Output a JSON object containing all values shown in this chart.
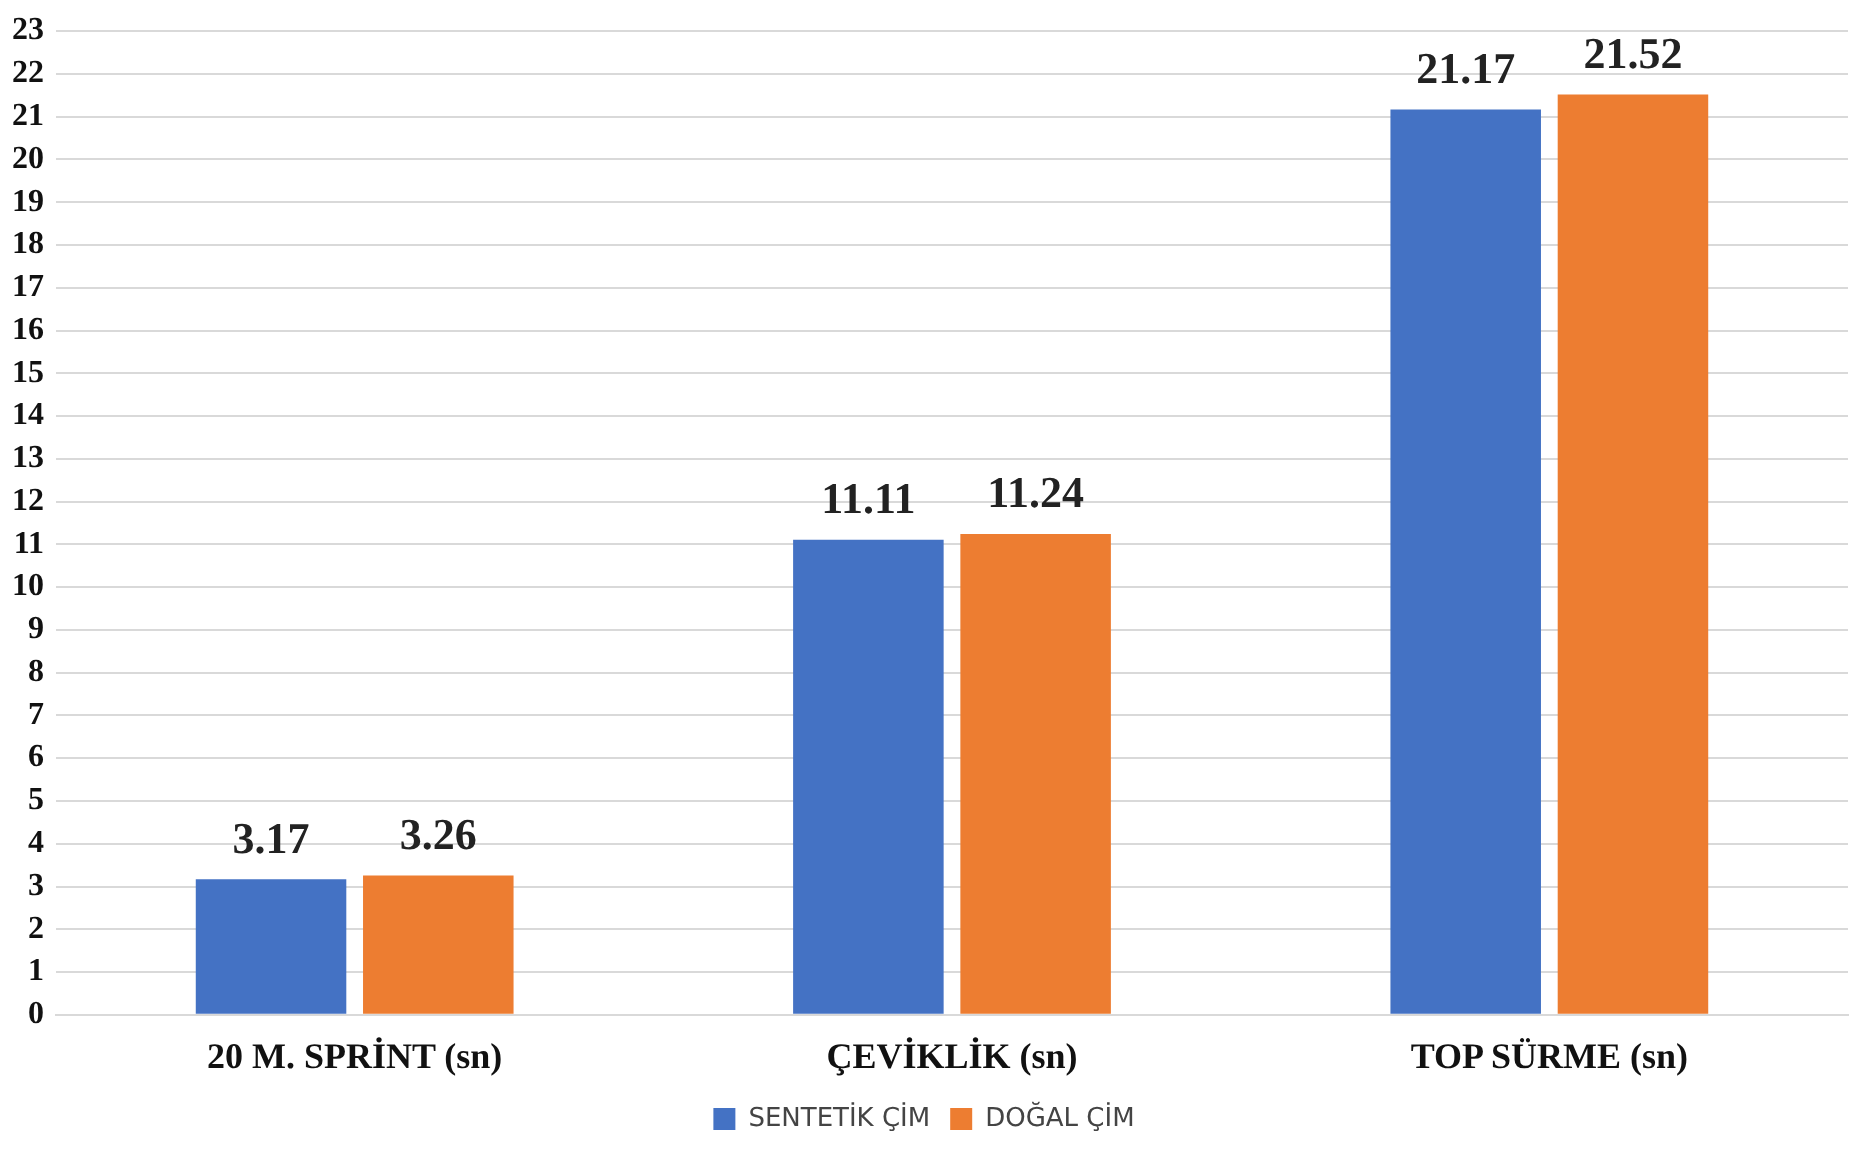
{
  "chart_data": {
    "type": "bar",
    "categories": [
      "20 M. SPRİNT (sn)",
      "ÇEVİKLİK (sn)",
      "TOP SÜRME (sn)"
    ],
    "series": [
      {
        "name": "SENTETİK ÇİM",
        "color": "#4472c4",
        "values": [
          3.17,
          11.11,
          21.17
        ]
      },
      {
        "name": "DOĞAL ÇİM",
        "color": "#ed7d31",
        "values": [
          3.26,
          11.24,
          21.52
        ]
      }
    ],
    "ylim": [
      0,
      23
    ],
    "yticks": [
      0,
      1,
      2,
      3,
      4,
      5,
      6,
      7,
      8,
      9,
      10,
      11,
      12,
      13,
      14,
      15,
      16,
      17,
      18,
      19,
      20,
      21,
      22,
      23
    ],
    "grid": "y",
    "legend": "bottom",
    "data_labels": true
  }
}
